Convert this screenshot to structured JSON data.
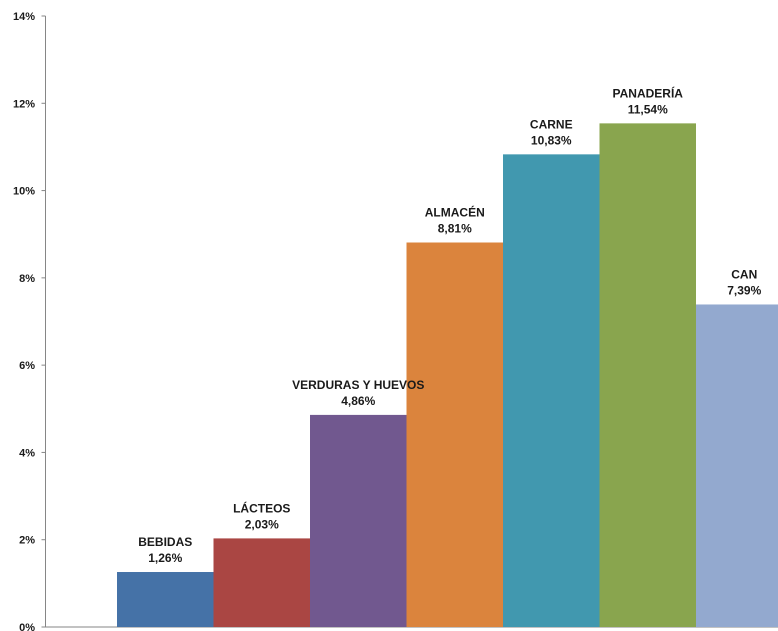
{
  "chart_data": {
    "type": "bar",
    "title": "",
    "xlabel": "",
    "ylabel": "",
    "ylim": [
      0,
      14
    ],
    "y_tick_values": [
      0,
      2,
      4,
      6,
      8,
      10,
      12,
      14
    ],
    "y_tick_labels": [
      "0%",
      "2%",
      "4%",
      "6%",
      "8%",
      "10%",
      "12%",
      "14%"
    ],
    "grid": false,
    "legend": "none",
    "categories": [
      "BEBIDAS",
      "LÁCTEOS",
      "VERDURAS Y HUEVOS",
      "ALMACÉN",
      "CARNE",
      "PANADERÍA",
      "CAN"
    ],
    "values": [
      1.26,
      2.03,
      4.86,
      8.81,
      10.83,
      11.54,
      7.39
    ],
    "value_labels": [
      "1,26%",
      "2,03%",
      "4,86%",
      "8,81%",
      "10,83%",
      "11,54%",
      "7,39%"
    ],
    "colors": [
      "#4572A7",
      "#AA4643",
      "#71588F",
      "#DB843D",
      "#4198AF",
      "#89A54E",
      "#93A9CF"
    ]
  }
}
